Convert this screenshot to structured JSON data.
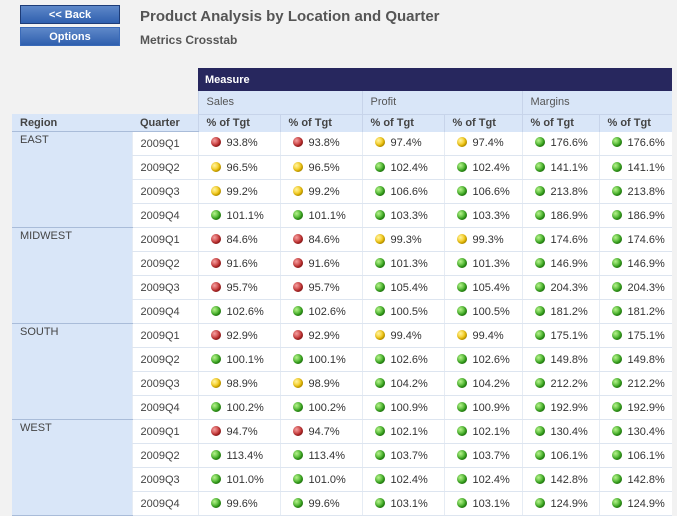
{
  "nav": {
    "back_label": "<< Back",
    "options_label": "Options"
  },
  "header": {
    "title": "Product Analysis by Location and Quarter",
    "subtitle": "Metrics Crosstab"
  },
  "crosstab": {
    "measure_label": "Measure",
    "groups": [
      "Sales",
      "Profit",
      "Margins"
    ],
    "row_headers": {
      "region": "Region",
      "quarter": "Quarter"
    },
    "column_label": "% of Tgt",
    "status_colors": {
      "green": "#35a81b",
      "yellow": "#f2c200",
      "red": "#c22a2a"
    },
    "regions": [
      {
        "name": "EAST",
        "rows": [
          {
            "quarter": "2009Q1",
            "cells": [
              [
                "red",
                "93.8%"
              ],
              [
                "red",
                "93.8%"
              ],
              [
                "yellow",
                "97.4%"
              ],
              [
                "yellow",
                "97.4%"
              ],
              [
                "green",
                "176.6%"
              ],
              [
                "green",
                "176.6%"
              ]
            ]
          },
          {
            "quarter": "2009Q2",
            "cells": [
              [
                "yellow",
                "96.5%"
              ],
              [
                "yellow",
                "96.5%"
              ],
              [
                "green",
                "102.4%"
              ],
              [
                "green",
                "102.4%"
              ],
              [
                "green",
                "141.1%"
              ],
              [
                "green",
                "141.1%"
              ]
            ]
          },
          {
            "quarter": "2009Q3",
            "cells": [
              [
                "yellow",
                "99.2%"
              ],
              [
                "yellow",
                "99.2%"
              ],
              [
                "green",
                "106.6%"
              ],
              [
                "green",
                "106.6%"
              ],
              [
                "green",
                "213.8%"
              ],
              [
                "green",
                "213.8%"
              ]
            ]
          },
          {
            "quarter": "2009Q4",
            "cells": [
              [
                "green",
                "101.1%"
              ],
              [
                "green",
                "101.1%"
              ],
              [
                "green",
                "103.3%"
              ],
              [
                "green",
                "103.3%"
              ],
              [
                "green",
                "186.9%"
              ],
              [
                "green",
                "186.9%"
              ]
            ]
          }
        ]
      },
      {
        "name": "MIDWEST",
        "rows": [
          {
            "quarter": "2009Q1",
            "cells": [
              [
                "red",
                "84.6%"
              ],
              [
                "red",
                "84.6%"
              ],
              [
                "yellow",
                "99.3%"
              ],
              [
                "yellow",
                "99.3%"
              ],
              [
                "green",
                "174.6%"
              ],
              [
                "green",
                "174.6%"
              ]
            ]
          },
          {
            "quarter": "2009Q2",
            "cells": [
              [
                "red",
                "91.6%"
              ],
              [
                "red",
                "91.6%"
              ],
              [
                "green",
                "101.3%"
              ],
              [
                "green",
                "101.3%"
              ],
              [
                "green",
                "146.9%"
              ],
              [
                "green",
                "146.9%"
              ]
            ]
          },
          {
            "quarter": "2009Q3",
            "cells": [
              [
                "red",
                "95.7%"
              ],
              [
                "red",
                "95.7%"
              ],
              [
                "green",
                "105.4%"
              ],
              [
                "green",
                "105.4%"
              ],
              [
                "green",
                "204.3%"
              ],
              [
                "green",
                "204.3%"
              ]
            ]
          },
          {
            "quarter": "2009Q4",
            "cells": [
              [
                "green",
                "102.6%"
              ],
              [
                "green",
                "102.6%"
              ],
              [
                "green",
                "100.5%"
              ],
              [
                "green",
                "100.5%"
              ],
              [
                "green",
                "181.2%"
              ],
              [
                "green",
                "181.2%"
              ]
            ]
          }
        ]
      },
      {
        "name": "SOUTH",
        "rows": [
          {
            "quarter": "2009Q1",
            "cells": [
              [
                "red",
                "92.9%"
              ],
              [
                "red",
                "92.9%"
              ],
              [
                "yellow",
                "99.4%"
              ],
              [
                "yellow",
                "99.4%"
              ],
              [
                "green",
                "175.1%"
              ],
              [
                "green",
                "175.1%"
              ]
            ]
          },
          {
            "quarter": "2009Q2",
            "cells": [
              [
                "green",
                "100.1%"
              ],
              [
                "green",
                "100.1%"
              ],
              [
                "green",
                "102.6%"
              ],
              [
                "green",
                "102.6%"
              ],
              [
                "green",
                "149.8%"
              ],
              [
                "green",
                "149.8%"
              ]
            ]
          },
          {
            "quarter": "2009Q3",
            "cells": [
              [
                "yellow",
                "98.9%"
              ],
              [
                "yellow",
                "98.9%"
              ],
              [
                "green",
                "104.2%"
              ],
              [
                "green",
                "104.2%"
              ],
              [
                "green",
                "212.2%"
              ],
              [
                "green",
                "212.2%"
              ]
            ]
          },
          {
            "quarter": "2009Q4",
            "cells": [
              [
                "green",
                "100.2%"
              ],
              [
                "green",
                "100.2%"
              ],
              [
                "green",
                "100.9%"
              ],
              [
                "green",
                "100.9%"
              ],
              [
                "green",
                "192.9%"
              ],
              [
                "green",
                "192.9%"
              ]
            ]
          }
        ]
      },
      {
        "name": "WEST",
        "rows": [
          {
            "quarter": "2009Q1",
            "cells": [
              [
                "red",
                "94.7%"
              ],
              [
                "red",
                "94.7%"
              ],
              [
                "green",
                "102.1%"
              ],
              [
                "green",
                "102.1%"
              ],
              [
                "green",
                "130.4%"
              ],
              [
                "green",
                "130.4%"
              ]
            ]
          },
          {
            "quarter": "2009Q2",
            "cells": [
              [
                "green",
                "113.4%"
              ],
              [
                "green",
                "113.4%"
              ],
              [
                "green",
                "103.7%"
              ],
              [
                "green",
                "103.7%"
              ],
              [
                "green",
                "106.1%"
              ],
              [
                "green",
                "106.1%"
              ]
            ]
          },
          {
            "quarter": "2009Q3",
            "cells": [
              [
                "green",
                "101.0%"
              ],
              [
                "green",
                "101.0%"
              ],
              [
                "green",
                "102.4%"
              ],
              [
                "green",
                "102.4%"
              ],
              [
                "green",
                "142.8%"
              ],
              [
                "green",
                "142.8%"
              ]
            ]
          },
          {
            "quarter": "2009Q4",
            "cells": [
              [
                "green",
                "99.6%"
              ],
              [
                "green",
                "99.6%"
              ],
              [
                "green",
                "103.1%"
              ],
              [
                "green",
                "103.1%"
              ],
              [
                "green",
                "124.9%"
              ],
              [
                "green",
                "124.9%"
              ]
            ]
          }
        ]
      }
    ]
  }
}
